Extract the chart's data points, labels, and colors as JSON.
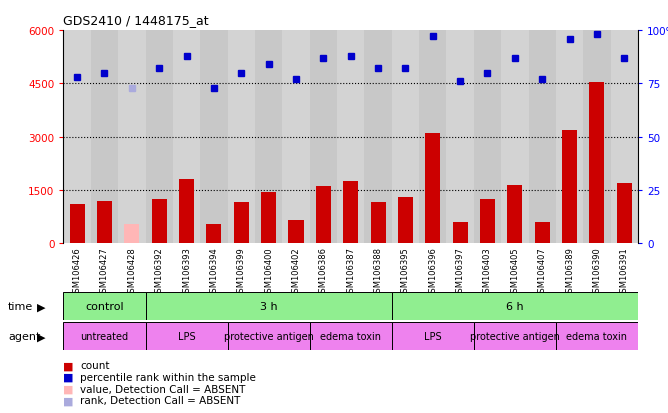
{
  "title": "GDS2410 / 1448175_at",
  "samples": [
    "GSM106426",
    "GSM106427",
    "GSM106428",
    "GSM106392",
    "GSM106393",
    "GSM106394",
    "GSM106399",
    "GSM106400",
    "GSM106402",
    "GSM106386",
    "GSM106387",
    "GSM106388",
    "GSM106395",
    "GSM106396",
    "GSM106397",
    "GSM106403",
    "GSM106405",
    "GSM106407",
    "GSM106389",
    "GSM106390",
    "GSM106391"
  ],
  "counts": [
    1100,
    1200,
    550,
    1250,
    1800,
    550,
    1150,
    1450,
    650,
    1600,
    1750,
    1150,
    1300,
    3100,
    600,
    1250,
    1650,
    600,
    3200,
    4550,
    1700
  ],
  "absent_count": [
    false,
    false,
    true,
    false,
    false,
    false,
    false,
    false,
    false,
    false,
    false,
    false,
    false,
    false,
    false,
    false,
    false,
    false,
    false,
    false,
    false
  ],
  "percentile_ranks": [
    78,
    80,
    73,
    82,
    88,
    73,
    80,
    84,
    77,
    87,
    88,
    82,
    82,
    97,
    76,
    80,
    87,
    77,
    96,
    98,
    87
  ],
  "absent_rank": [
    false,
    false,
    true,
    false,
    false,
    false,
    false,
    false,
    false,
    false,
    false,
    false,
    false,
    false,
    false,
    false,
    false,
    false,
    false,
    false,
    false
  ],
  "time_groups": [
    {
      "label": "control",
      "start": 0,
      "end": 3,
      "color": "#90ee90"
    },
    {
      "label": "3 h",
      "start": 3,
      "end": 12,
      "color": "#90ee90"
    },
    {
      "label": "6 h",
      "start": 12,
      "end": 21,
      "color": "#90ee90"
    }
  ],
  "agent_groups": [
    {
      "label": "untreated",
      "start": 0,
      "end": 3,
      "color": "#ee82ee"
    },
    {
      "label": "LPS",
      "start": 3,
      "end": 6,
      "color": "#ee82ee"
    },
    {
      "label": "protective antigen",
      "start": 6,
      "end": 9,
      "color": "#ee82ee"
    },
    {
      "label": "edema toxin",
      "start": 9,
      "end": 12,
      "color": "#ee82ee"
    },
    {
      "label": "LPS",
      "start": 12,
      "end": 15,
      "color": "#ee82ee"
    },
    {
      "label": "protective antigen",
      "start": 15,
      "end": 18,
      "color": "#ee82ee"
    },
    {
      "label": "edema toxin",
      "start": 18,
      "end": 21,
      "color": "#ee82ee"
    }
  ],
  "bar_color": "#cc0000",
  "absent_bar_color": "#ffb6b6",
  "rank_color": "#0000cc",
  "absent_rank_color": "#aaaadd",
  "ylim_left": [
    0,
    6000
  ],
  "ylim_right": [
    0,
    100
  ],
  "yticks_left": [
    0,
    1500,
    3000,
    4500,
    6000
  ],
  "yticks_right": [
    0,
    25,
    50,
    75,
    100
  ],
  "plot_bg_color": "#ffffff",
  "col_bg_even": "#d3d3d3",
  "col_bg_odd": "#c8c8c8"
}
